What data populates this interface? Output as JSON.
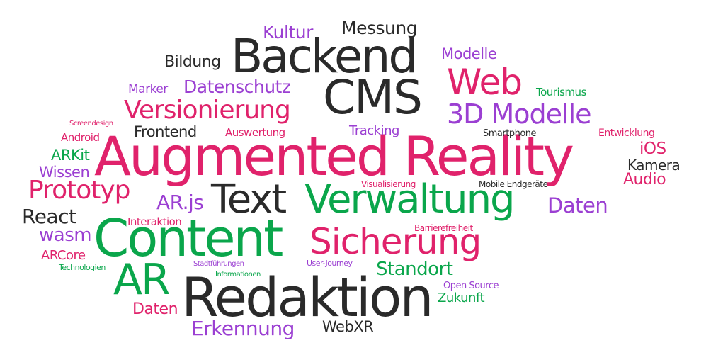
{
  "colors": {
    "pink": "#e0226b",
    "green": "#0aa64b",
    "black": "#2a2a2a",
    "purple": "#9b3fd2"
  },
  "words": [
    {
      "id": "augmented-reality",
      "text": "Augmented Reality",
      "color": "pink"
    },
    {
      "id": "redaktion",
      "text": "Redaktion",
      "color": "black"
    },
    {
      "id": "content",
      "text": "Content",
      "color": "green"
    },
    {
      "id": "backend",
      "text": "Backend",
      "color": "black"
    },
    {
      "id": "cms",
      "text": "CMS",
      "color": "black"
    },
    {
      "id": "verwaltung",
      "text": "Verwaltung",
      "color": "green"
    },
    {
      "id": "ar",
      "text": "AR",
      "color": "green"
    },
    {
      "id": "text",
      "text": "Text",
      "color": "black"
    },
    {
      "id": "sicherung",
      "text": "Sicherung",
      "color": "pink"
    },
    {
      "id": "web",
      "text": "Web",
      "color": "pink"
    },
    {
      "id": "prototyp",
      "text": "Prototyp",
      "color": "pink"
    },
    {
      "id": "versionierung",
      "text": "Versionierung",
      "color": "pink"
    },
    {
      "id": "3d-modelle",
      "text": "3D Modelle",
      "color": "purple"
    },
    {
      "id": "standort",
      "text": "Standort",
      "color": "green"
    },
    {
      "id": "erkennung",
      "text": "Erkennung",
      "color": "purple"
    },
    {
      "id": "daten-right",
      "text": "Daten",
      "color": "purple"
    },
    {
      "id": "react",
      "text": "React",
      "color": "black"
    },
    {
      "id": "ar-js",
      "text": "AR.js",
      "color": "purple"
    },
    {
      "id": "messung",
      "text": "Messung",
      "color": "black"
    },
    {
      "id": "kultur",
      "text": "Kultur",
      "color": "purple"
    },
    {
      "id": "datenschutz",
      "text": "Datenschutz",
      "color": "purple"
    },
    {
      "id": "wasm",
      "text": "wasm",
      "color": "purple"
    },
    {
      "id": "daten-left",
      "text": "Daten",
      "color": "pink"
    },
    {
      "id": "ios",
      "text": "iOS",
      "color": "pink"
    },
    {
      "id": "audio",
      "text": "Audio",
      "color": "pink"
    },
    {
      "id": "kamera",
      "text": "Kamera",
      "color": "black"
    },
    {
      "id": "frontend",
      "text": "Frontend",
      "color": "black"
    },
    {
      "id": "webxr",
      "text": "WebXR",
      "color": "black"
    },
    {
      "id": "bildung",
      "text": "Bildung",
      "color": "black"
    },
    {
      "id": "modelle",
      "text": "Modelle",
      "color": "purple"
    },
    {
      "id": "arkit",
      "text": "ARKit",
      "color": "green"
    },
    {
      "id": "wissen",
      "text": "Wissen",
      "color": "purple"
    },
    {
      "id": "tracking",
      "text": "Tracking",
      "color": "purple"
    },
    {
      "id": "marker",
      "text": "Marker",
      "color": "purple"
    },
    {
      "id": "zukunft",
      "text": "Zukunft",
      "color": "green"
    },
    {
      "id": "arcore",
      "text": "ARCore",
      "color": "pink"
    },
    {
      "id": "auswertung",
      "text": "Auswertung",
      "color": "pink"
    },
    {
      "id": "tourismus",
      "text": "Tourismus",
      "color": "green"
    },
    {
      "id": "entwicklung",
      "text": "Entwicklung",
      "color": "pink"
    },
    {
      "id": "smartphone",
      "text": "Smartphone",
      "color": "black"
    },
    {
      "id": "android",
      "text": "Android",
      "color": "pink"
    },
    {
      "id": "interaktion",
      "text": "Interaktion",
      "color": "pink"
    },
    {
      "id": "visualisierung",
      "text": "Visualisierung",
      "color": "pink"
    },
    {
      "id": "mobile-endgeraete",
      "text": "Mobile Endgeräte",
      "color": "black"
    },
    {
      "id": "barrierefreiheit",
      "text": "Barrierefreiheit",
      "color": "pink"
    },
    {
      "id": "technologien",
      "text": "Technologien",
      "color": "green"
    },
    {
      "id": "screendesign",
      "text": "Screendesign",
      "color": "pink"
    },
    {
      "id": "stadtfuehrungen",
      "text": "Stadtführungen",
      "color": "purple"
    },
    {
      "id": "informationen",
      "text": "Informationen",
      "color": "green"
    },
    {
      "id": "user-journey",
      "text": "User-Journey",
      "color": "purple"
    },
    {
      "id": "open-source",
      "text": "Open Source",
      "color": "purple"
    }
  ]
}
